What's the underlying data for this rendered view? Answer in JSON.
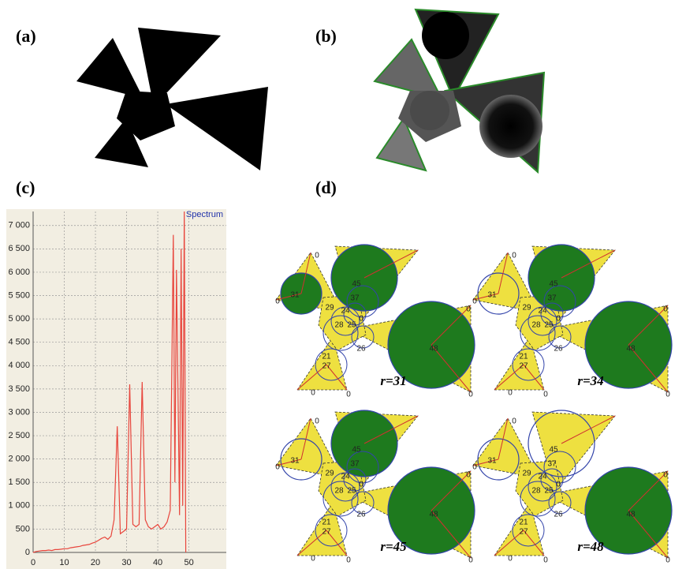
{
  "panels": {
    "a": "(a)",
    "b": "(b)",
    "c": "(c)",
    "d": "(d)"
  },
  "chart_data": {
    "type": "line",
    "legend": "Spectrum",
    "color": "#e8453c",
    "grid": true,
    "x": [
      0,
      1,
      2,
      3,
      4,
      5,
      6,
      7,
      8,
      9,
      10,
      11,
      12,
      13,
      14,
      15,
      16,
      17,
      18,
      19,
      20,
      21,
      22,
      23,
      24,
      25,
      26,
      27,
      28,
      29,
      30,
      31,
      32,
      33,
      34,
      35,
      36,
      37,
      38,
      39,
      40,
      41,
      42,
      43,
      44,
      45,
      45.5,
      46,
      47,
      47.5,
      48,
      48.5,
      49
    ],
    "values": [
      0,
      20,
      30,
      40,
      40,
      50,
      40,
      60,
      60,
      70,
      80,
      80,
      100,
      110,
      120,
      130,
      150,
      160,
      170,
      200,
      220,
      260,
      300,
      330,
      280,
      350,
      700,
      2700,
      400,
      450,
      500,
      3600,
      600,
      550,
      600,
      3650,
      700,
      550,
      500,
      550,
      600,
      500,
      550,
      650,
      900,
      6800,
      1500,
      6050,
      800,
      6500,
      1000,
      7300,
      0
    ],
    "xlim": [
      0,
      62
    ],
    "xticks": [
      0,
      10,
      20,
      30,
      40,
      50
    ],
    "ylim": [
      0,
      7300
    ],
    "yticks": [
      0,
      500,
      {
        "value": 1000,
        "label": "1 000"
      },
      {
        "value": 1500,
        "label": "1 500"
      },
      {
        "value": 2000,
        "label": "2 000"
      },
      {
        "value": 2500,
        "label": "2 500"
      },
      {
        "value": 3000,
        "label": "3 000"
      },
      {
        "value": 3500,
        "label": "3 500"
      },
      {
        "value": 4000,
        "label": "4 000"
      },
      {
        "value": 4500,
        "label": "4 500"
      },
      {
        "value": 5000,
        "label": "5 000"
      },
      {
        "value": 5500,
        "label": "5 500"
      },
      {
        "value": 6000,
        "label": "6 000"
      },
      {
        "value": 6500,
        "label": "6 500"
      },
      {
        "value": 7000,
        "label": "7 000"
      }
    ]
  },
  "diagrams": [
    {
      "caption": "r=31",
      "labels": [
        "0",
        "0",
        "31",
        "45",
        "37",
        "24",
        "29",
        "28",
        "25",
        "0",
        "26",
        "48",
        "21",
        "27",
        "0",
        "0",
        "0",
        "0"
      ]
    },
    {
      "caption": "r=34",
      "labels": [
        "0",
        "0",
        "31",
        "45",
        "37",
        "24",
        "29",
        "28",
        "25",
        "0",
        "26",
        "48",
        "21",
        "27",
        "0",
        "0",
        "0",
        "0"
      ]
    },
    {
      "caption": "r=45",
      "labels": [
        "0",
        "0",
        "31",
        "45",
        "37",
        "24",
        "29",
        "28",
        "25",
        "0",
        "26",
        "48",
        "21",
        "27",
        "0",
        "0",
        "0",
        "0"
      ]
    },
    {
      "caption": "r=48",
      "labels": [
        "0",
        "0",
        "31",
        "45",
        "37",
        "24",
        "29",
        "28",
        "25",
        "0",
        "26",
        "48",
        "21",
        "27",
        "0",
        "0",
        "0",
        "0"
      ]
    }
  ]
}
